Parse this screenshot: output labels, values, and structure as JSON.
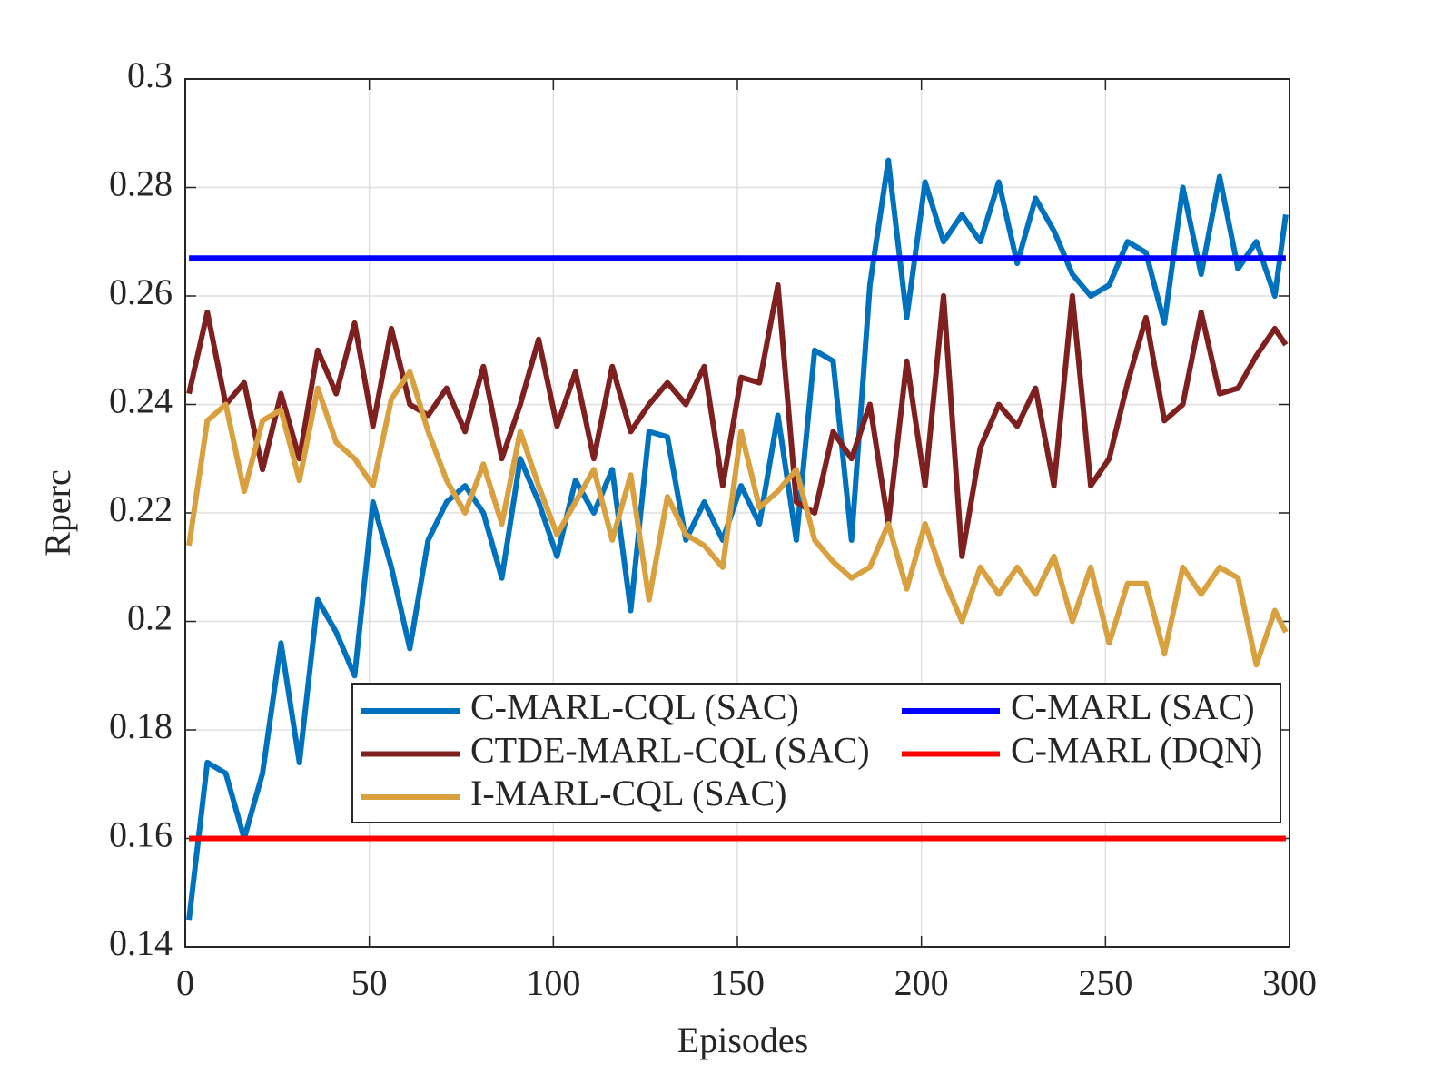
{
  "chart_data": {
    "type": "line",
    "x_label": "Episodes",
    "y_label": "Rperc",
    "xlim": [
      0,
      300
    ],
    "xticks": [
      0,
      50,
      100,
      150,
      200,
      250,
      300
    ],
    "ylim": [
      0.14,
      0.3
    ],
    "yticks": [
      0.14,
      0.16,
      0.18,
      0.2,
      0.22,
      0.24,
      0.26,
      0.28,
      0.3
    ],
    "grid": true,
    "legend": "south",
    "series": [
      {
        "name": "C-MARL-CQL (SAC)",
        "color": "#0072bd",
        "x": [
          1,
          6,
          11,
          16,
          21,
          26,
          31,
          36,
          41,
          46,
          51,
          56,
          61,
          66,
          71,
          76,
          81,
          86,
          91,
          96,
          101,
          106,
          111,
          116,
          121,
          126,
          131,
          136,
          141,
          146,
          151,
          156,
          161,
          166,
          171,
          176,
          181,
          186,
          191,
          196,
          201,
          206,
          211,
          216,
          221,
          226,
          231,
          236,
          241,
          246,
          251,
          256,
          261,
          266,
          271,
          276,
          281,
          286,
          291,
          296,
          299
        ],
        "values": [
          0.145,
          0.174,
          0.172,
          0.16,
          0.172,
          0.196,
          0.174,
          0.204,
          0.198,
          0.19,
          0.222,
          0.21,
          0.195,
          0.215,
          0.222,
          0.225,
          0.22,
          0.208,
          0.23,
          0.222,
          0.212,
          0.226,
          0.22,
          0.228,
          0.202,
          0.235,
          0.234,
          0.215,
          0.222,
          0.215,
          0.225,
          0.218,
          0.238,
          0.215,
          0.25,
          0.248,
          0.215,
          0.262,
          0.285,
          0.256,
          0.281,
          0.27,
          0.275,
          0.27,
          0.281,
          0.266,
          0.278,
          0.272,
          0.264,
          0.26,
          0.262,
          0.27,
          0.268,
          0.255,
          0.28,
          0.264,
          0.282,
          0.265,
          0.27,
          0.26,
          0.275
        ]
      },
      {
        "name": "CTDE-MARL-CQL (SAC)",
        "color": "#7e2020",
        "x": [
          1,
          6,
          11,
          16,
          21,
          26,
          31,
          36,
          41,
          46,
          51,
          56,
          61,
          66,
          71,
          76,
          81,
          86,
          91,
          96,
          101,
          106,
          111,
          116,
          121,
          126,
          131,
          136,
          141,
          146,
          151,
          156,
          161,
          166,
          171,
          176,
          181,
          186,
          191,
          196,
          201,
          206,
          211,
          216,
          221,
          226,
          231,
          236,
          241,
          246,
          251,
          256,
          261,
          266,
          271,
          276,
          281,
          286,
          291,
          296,
          299
        ],
        "values": [
          0.242,
          0.257,
          0.24,
          0.244,
          0.228,
          0.242,
          0.23,
          0.25,
          0.242,
          0.255,
          0.236,
          0.254,
          0.24,
          0.238,
          0.243,
          0.235,
          0.247,
          0.23,
          0.24,
          0.252,
          0.236,
          0.246,
          0.23,
          0.247,
          0.235,
          0.24,
          0.244,
          0.24,
          0.247,
          0.225,
          0.245,
          0.244,
          0.262,
          0.222,
          0.22,
          0.235,
          0.23,
          0.24,
          0.218,
          0.248,
          0.225,
          0.26,
          0.212,
          0.232,
          0.24,
          0.236,
          0.243,
          0.225,
          0.26,
          0.225,
          0.23,
          0.244,
          0.256,
          0.237,
          0.24,
          0.257,
          0.242,
          0.243,
          0.249,
          0.254,
          0.251
        ]
      },
      {
        "name": "I-MARL-CQL (SAC)",
        "color": "#d9a03f",
        "x": [
          1,
          6,
          11,
          16,
          21,
          26,
          31,
          36,
          41,
          46,
          51,
          56,
          61,
          66,
          71,
          76,
          81,
          86,
          91,
          96,
          101,
          106,
          111,
          116,
          121,
          126,
          131,
          136,
          141,
          146,
          151,
          156,
          161,
          166,
          171,
          176,
          181,
          186,
          191,
          196,
          201,
          206,
          211,
          216,
          221,
          226,
          231,
          236,
          241,
          246,
          251,
          256,
          261,
          266,
          271,
          276,
          281,
          286,
          291,
          296,
          299
        ],
        "values": [
          0.214,
          0.237,
          0.24,
          0.224,
          0.237,
          0.239,
          0.226,
          0.243,
          0.233,
          0.23,
          0.225,
          0.241,
          0.246,
          0.235,
          0.226,
          0.22,
          0.229,
          0.218,
          0.235,
          0.225,
          0.216,
          0.222,
          0.228,
          0.215,
          0.227,
          0.204,
          0.223,
          0.216,
          0.214,
          0.21,
          0.235,
          0.221,
          0.224,
          0.228,
          0.215,
          0.211,
          0.208,
          0.21,
          0.218,
          0.206,
          0.218,
          0.208,
          0.2,
          0.21,
          0.205,
          0.21,
          0.205,
          0.212,
          0.2,
          0.21,
          0.196,
          0.207,
          0.207,
          0.194,
          0.21,
          0.205,
          0.21,
          0.208,
          0.192,
          0.202,
          0.198
        ]
      },
      {
        "name": "C-MARL (SAC)",
        "color": "#0000ff",
        "x": [
          1,
          299
        ],
        "values": [
          0.267,
          0.267
        ]
      },
      {
        "name": "C-MARL (DQN)",
        "color": "#ff0000",
        "x": [
          1,
          299
        ],
        "values": [
          0.16,
          0.16
        ]
      }
    ]
  }
}
